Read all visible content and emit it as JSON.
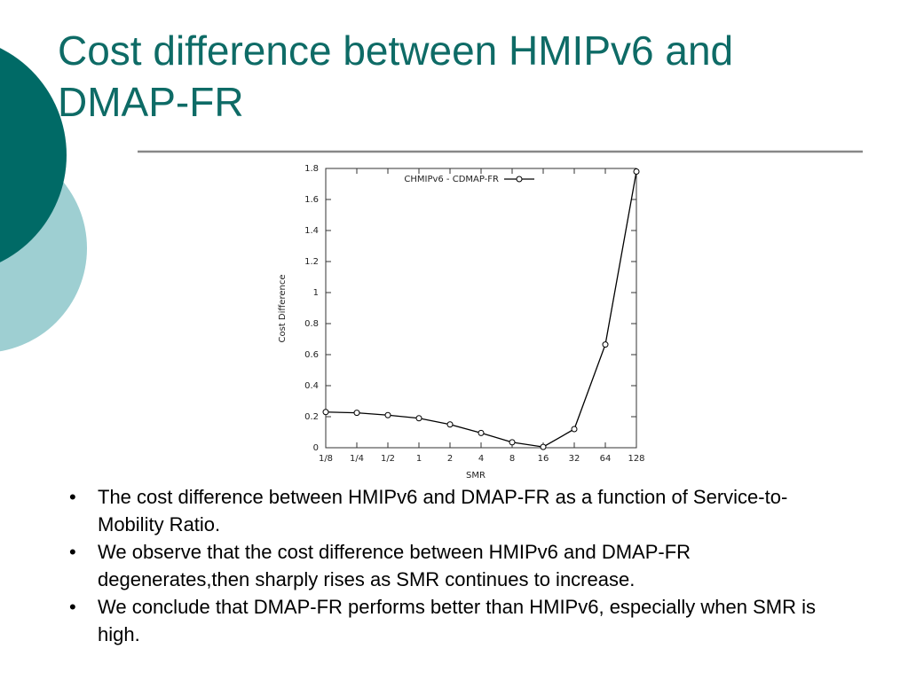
{
  "slide": {
    "title": "Cost difference between HMIPv6 and DMAP-FR",
    "bullets": [
      "The cost difference between HMIPv6 and DMAP-FR as a function of Service-to-Mobility Ratio.",
      "We observe that the cost difference between HMIPv6 and DMAP-FR degenerates,then sharply rises as SMR continues to increase.",
      "We conclude that DMAP-FR performs better than HMIPv6, especially when SMR is high."
    ]
  },
  "chart_data": {
    "type": "line",
    "x_label": "SMR",
    "y_label": "Cost Difference",
    "categories": [
      "1/8",
      "1/4",
      "1/2",
      "1",
      "2",
      "4",
      "8",
      "16",
      "32",
      "64",
      "128"
    ],
    "series": [
      {
        "name": "CHMIPv6 - CDMAP-FR",
        "color": "#000000",
        "values": [
          0.23,
          0.225,
          0.21,
          0.19,
          0.15,
          0.095,
          0.035,
          0.005,
          0.12,
          0.665,
          1.78
        ]
      }
    ],
    "ylim": [
      0,
      1.8
    ],
    "yticks": [
      0,
      0.2,
      0.4,
      0.6,
      0.8,
      1,
      1.2,
      1.4,
      1.6,
      1.8
    ],
    "legend": "top-right"
  }
}
